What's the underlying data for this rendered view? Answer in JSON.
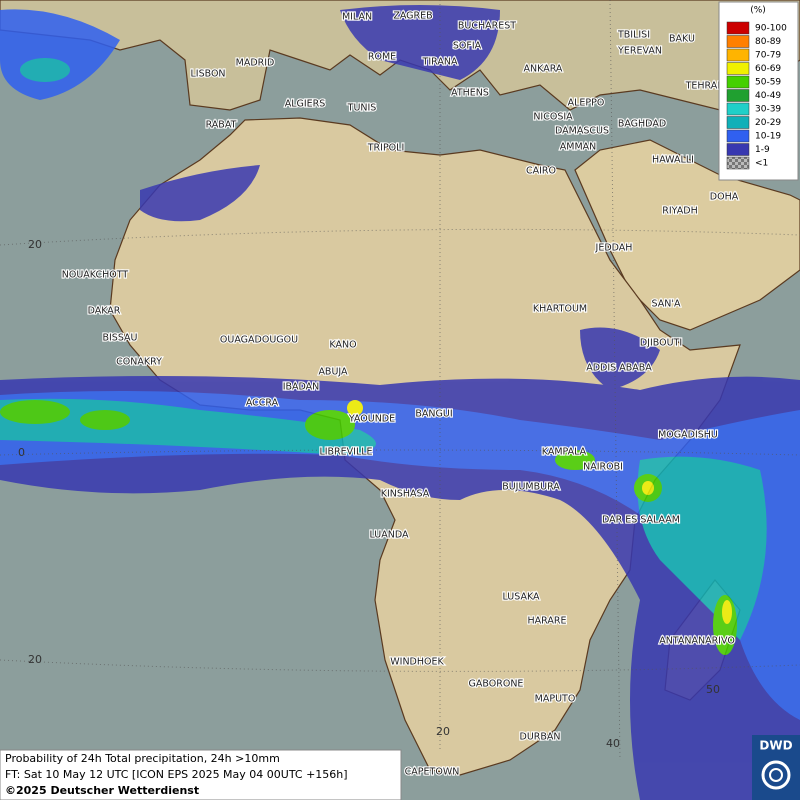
{
  "map": {
    "cities": [
      "MILAN",
      "ZAGREB",
      "BUCHAREST",
      "MADRID",
      "ROME",
      "SOFIA",
      "TIRANA",
      "ANKARA",
      "TBILISI",
      "BAKU",
      "YEREVAN",
      "TEHRAN",
      "LISBON",
      "ALGIERS",
      "TUNIS",
      "ATHENS",
      "ALEPPO",
      "NICOSIA",
      "BAGHDAD",
      "RABAT",
      "TRIPOLI",
      "DAMASCUS",
      "AMMAN",
      "CAIRO",
      "HAWALLI",
      "DOHA",
      "RIYADH",
      "JEDDAH",
      "NOUAKCHOTT",
      "DAKAR",
      "KHARTOUM",
      "SAN'A",
      "BISSAU",
      "OUAGADOUGOU",
      "KANO",
      "DJIBOUTI",
      "CONAKRY",
      "ABUJA",
      "ADDIS ABABA",
      "IBADAN",
      "ACCRA",
      "YAOUNDE",
      "BANGUI",
      "MOGADISHU",
      "LIBREVILLE",
      "KAMPALA",
      "NAIROBI",
      "BUJUMBURA",
      "KINSHASA",
      "DAR ES SALAAM",
      "LUANDA",
      "LUSAKA",
      "HARARE",
      "ANTANANARIVO",
      "WINDHOEK",
      "GABORONE",
      "MAPUTO",
      "DURBAN",
      "CAPETOWN"
    ],
    "grid_labels": [
      "20",
      "0",
      "20",
      "20",
      "40",
      "50"
    ],
    "legend": {
      "title": "(%)",
      "items": [
        {
          "label": "90-100",
          "color": "#cc0000"
        },
        {
          "label": "80-89",
          "color": "#ff7f00"
        },
        {
          "label": "70-79",
          "color": "#ffb400"
        },
        {
          "label": "60-69",
          "color": "#f0f000"
        },
        {
          "label": "50-59",
          "color": "#44d000"
        },
        {
          "label": "40-49",
          "color": "#20a030"
        },
        {
          "label": "30-39",
          "color": "#20d0c8"
        },
        {
          "label": "20-29",
          "color": "#10b0b8"
        },
        {
          "label": "10-19",
          "color": "#3060f0"
        },
        {
          "label": "1-9",
          "color": "#3838b0"
        },
        {
          "label": "<1",
          "color": "#a0a0a0"
        }
      ]
    },
    "caption": [
      "Probability of 24h Total precipitation, 24h >10mm",
      "FT: Sat 10 May 12 UTC [ICON EPS 2025 May 04 00UTC +156h]",
      "©2025 Deutscher Wetterdienst"
    ],
    "logo": "DWD"
  }
}
